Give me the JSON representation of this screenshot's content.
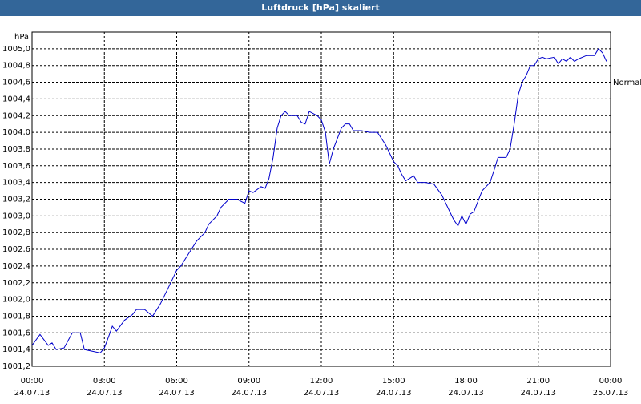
{
  "chart_data": {
    "type": "line",
    "title": "Luftdruck [hPa] skaliert",
    "y_unit": "hPa",
    "xlim": [
      0,
      24
    ],
    "ylim": [
      1001.2,
      1005.2
    ],
    "grid": true,
    "legend": "right",
    "xticks": [
      {
        "value": 0,
        "label": "00:00",
        "date": "24.07.13"
      },
      {
        "value": 3,
        "label": "03:00",
        "date": "24.07.13"
      },
      {
        "value": 6,
        "label": "06:00",
        "date": "24.07.13"
      },
      {
        "value": 9,
        "label": "09:00",
        "date": "24.07.13"
      },
      {
        "value": 12,
        "label": "12:00",
        "date": "24.07.13"
      },
      {
        "value": 15,
        "label": "15:00",
        "date": "24.07.13"
      },
      {
        "value": 18,
        "label": "18:00",
        "date": "24.07.13"
      },
      {
        "value": 21,
        "label": "21:00",
        "date": "24.07.13"
      },
      {
        "value": 24,
        "label": "00:00",
        "date": "25.07.13"
      }
    ],
    "yticks": [
      {
        "value": 1001.2,
        "label": "1001,2"
      },
      {
        "value": 1001.4,
        "label": "1001,4"
      },
      {
        "value": 1001.6,
        "label": "1001,6"
      },
      {
        "value": 1001.8,
        "label": "1001,8"
      },
      {
        "value": 1002.0,
        "label": "1002,0"
      },
      {
        "value": 1002.2,
        "label": "1002,2"
      },
      {
        "value": 1002.4,
        "label": "1002,4"
      },
      {
        "value": 1002.6,
        "label": "1002,6"
      },
      {
        "value": 1002.8,
        "label": "1002,8"
      },
      {
        "value": 1003.0,
        "label": "1003,0"
      },
      {
        "value": 1003.2,
        "label": "1003,2"
      },
      {
        "value": 1003.4,
        "label": "1003,4"
      },
      {
        "value": 1003.6,
        "label": "1003,6"
      },
      {
        "value": 1003.8,
        "label": "1003,8"
      },
      {
        "value": 1004.0,
        "label": "1004,0"
      },
      {
        "value": 1004.2,
        "label": "1004,2"
      },
      {
        "value": 1004.4,
        "label": "1004,4"
      },
      {
        "value": 1004.6,
        "label": "1004,6"
      },
      {
        "value": 1004.8,
        "label": "1004,8"
      },
      {
        "value": 1005.0,
        "label": "1005,0"
      }
    ],
    "x": [
      0,
      0.33,
      0.67,
      0.83,
      1,
      1.33,
      1.67,
      2,
      2.17,
      2.5,
      2.83,
      3,
      3.17,
      3.33,
      3.5,
      3.83,
      4.17,
      4.33,
      4.67,
      5,
      5.33,
      5.67,
      6,
      6.17,
      6.5,
      6.83,
      7.17,
      7.33,
      7.67,
      7.83,
      8.17,
      8.5,
      8.83,
      9,
      9.17,
      9.5,
      9.67,
      9.83,
      10,
      10.17,
      10.33,
      10.5,
      10.67,
      11,
      11.17,
      11.33,
      11.5,
      11.83,
      12,
      12.17,
      12.33,
      12.5,
      12.83,
      13,
      13.17,
      13.33,
      13.67,
      14,
      14.33,
      14.67,
      15,
      15.17,
      15.33,
      15.5,
      15.67,
      15.83,
      16,
      16.33,
      16.67,
      17,
      17.33,
      17.5,
      17.67,
      17.83,
      18,
      18.17,
      18.33,
      18.67,
      19,
      19.17,
      19.33,
      19.67,
      19.83,
      20,
      20.17,
      20.33,
      20.5,
      20.67,
      20.83,
      21,
      21.17,
      21.33,
      21.67,
      21.83,
      22,
      22.17,
      22.33,
      22.5,
      22.67,
      23,
      23.33,
      23.5,
      23.67,
      23.83
    ],
    "series": [
      {
        "name": "Normal",
        "color": "#0000cc",
        "values": [
          1001.45,
          1001.58,
          1001.45,
          1001.48,
          1001.4,
          1001.42,
          1001.6,
          1001.6,
          1001.4,
          1001.38,
          1001.36,
          1001.42,
          1001.55,
          1001.68,
          1001.62,
          1001.75,
          1001.82,
          1001.88,
          1001.88,
          1001.8,
          1001.95,
          1002.15,
          1002.35,
          1002.4,
          1002.55,
          1002.7,
          1002.8,
          1002.9,
          1003.0,
          1003.1,
          1003.2,
          1003.2,
          1003.15,
          1003.3,
          1003.28,
          1003.35,
          1003.33,
          1003.45,
          1003.7,
          1004.05,
          1004.2,
          1004.25,
          1004.2,
          1004.2,
          1004.12,
          1004.1,
          1004.25,
          1004.2,
          1004.15,
          1004.0,
          1003.62,
          1003.8,
          1004.05,
          1004.1,
          1004.1,
          1004.02,
          1004.02,
          1004.0,
          1004.0,
          1003.85,
          1003.65,
          1003.6,
          1003.5,
          1003.42,
          1003.45,
          1003.48,
          1003.4,
          1003.4,
          1003.38,
          1003.25,
          1003.05,
          1002.95,
          1002.88,
          1003.0,
          1002.9,
          1003.02,
          1003.05,
          1003.3,
          1003.4,
          1003.55,
          1003.7,
          1003.7,
          1003.8,
          1004.1,
          1004.45,
          1004.6,
          1004.68,
          1004.8,
          1004.8,
          1004.88,
          1004.9,
          1004.88,
          1004.9,
          1004.82,
          1004.88,
          1004.85,
          1004.9,
          1004.85,
          1004.88,
          1004.92,
          1004.92,
          1005.0,
          1004.95,
          1004.85
        ]
      }
    ]
  }
}
